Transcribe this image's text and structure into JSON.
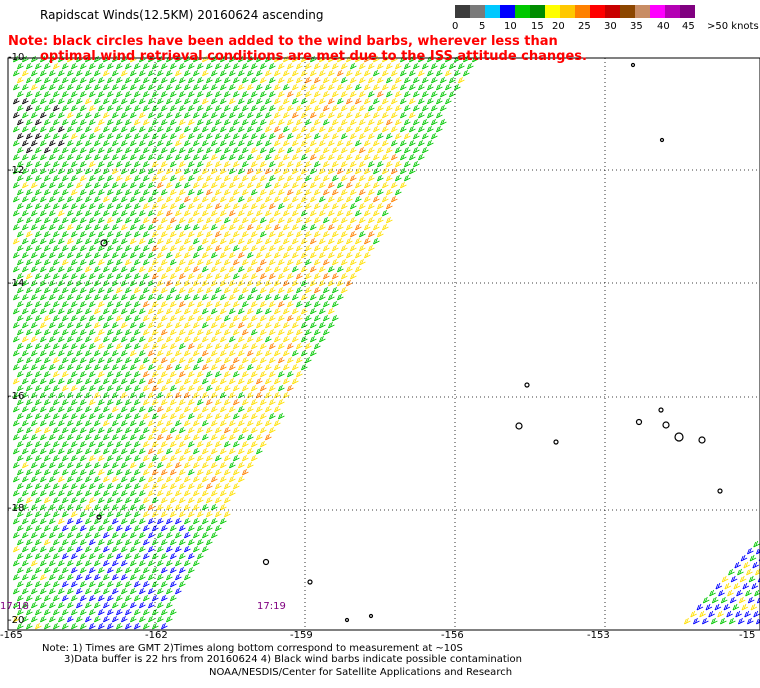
{
  "title": "Rapidscat Winds(12.5KM) 20160624 ascending",
  "note": {
    "line1": "Note: black circles have been added to the wind barbs, wherever less than",
    "line2": "optimal wind retrieval conditions are met due to the ISS attitude changes."
  },
  "colorbar": {
    "colors": [
      "#3c3c3c",
      "#7a7a7a",
      "#00c8ff",
      "#0000ff",
      "#00c800",
      "#008c00",
      "#ffff00",
      "#ffc800",
      "#ff8000",
      "#ff0000",
      "#c80000",
      "#8c4600",
      "#c88c64",
      "#ff00ff",
      "#b400b4",
      "#800080"
    ],
    "labels": [
      "0",
      "5",
      "10",
      "15",
      "20",
      "25",
      "30",
      "35",
      "40",
      "45",
      ">50 knots"
    ]
  },
  "axes": {
    "lat_labels": [
      "-10",
      "-12",
      "-14",
      "-16",
      "-18",
      "-20"
    ],
    "lon_labels": [
      "-165",
      "-162",
      "-159",
      "-156",
      "-153",
      "-15"
    ]
  },
  "times": [
    "17:18",
    "17:19"
  ],
  "footer": {
    "line1": "Note: 1) Times are GMT 2)Times along bottom correspond to measurement at ~10S",
    "line2": "3)Data buffer is 22 hrs from 20160624 4) Black wind barbs indicate possible contamination",
    "line3": "NOAA/NESDIS/Center for Satellite Applications and Research"
  }
}
